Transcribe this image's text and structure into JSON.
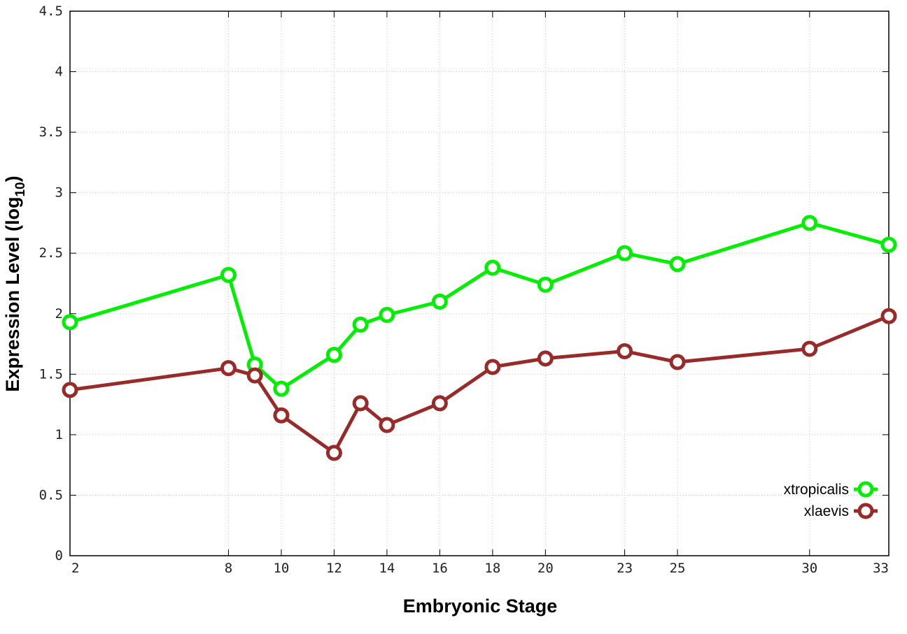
{
  "chart_data": {
    "type": "line",
    "xlabel": "Embryonic Stage",
    "ylabel": "Expression Level (log",
    "ylabel_subscript": "10",
    "ylabel_suffix": ")",
    "x": [
      2,
      8,
      9,
      10,
      12,
      13,
      14,
      16,
      18,
      20,
      23,
      25,
      30,
      33
    ],
    "xticks": [
      2,
      8,
      10,
      12,
      14,
      16,
      18,
      20,
      23,
      25,
      30,
      33
    ],
    "xtick_labels": [
      "2",
      "8",
      "10",
      "12",
      "14",
      "16",
      "18",
      "20",
      "23",
      "25",
      "30",
      "33"
    ],
    "xlim": [
      2,
      33
    ],
    "ylim": [
      0,
      4.5
    ],
    "yticks": [
      0,
      0.5,
      1,
      1.5,
      2,
      2.5,
      3,
      3.5,
      4,
      4.5
    ],
    "ytick_labels": [
      "0",
      "0.5",
      "1",
      "1.5",
      "2",
      "2.5",
      "3",
      "3.5",
      "4",
      "4.5"
    ],
    "grid": true,
    "legend_position": "bottom-right",
    "series": [
      {
        "name": "xtropicalis",
        "color": "#00ee00",
        "values": [
          1.93,
          2.32,
          1.58,
          1.38,
          1.66,
          1.91,
          1.99,
          2.1,
          2.38,
          2.24,
          2.5,
          2.41,
          2.75,
          2.57
        ]
      },
      {
        "name": "xlaevis",
        "color": "#992a2a",
        "values": [
          1.37,
          1.55,
          1.49,
          1.16,
          0.85,
          1.26,
          1.08,
          1.26,
          1.56,
          1.63,
          1.69,
          1.6,
          1.71,
          1.98
        ]
      }
    ]
  }
}
